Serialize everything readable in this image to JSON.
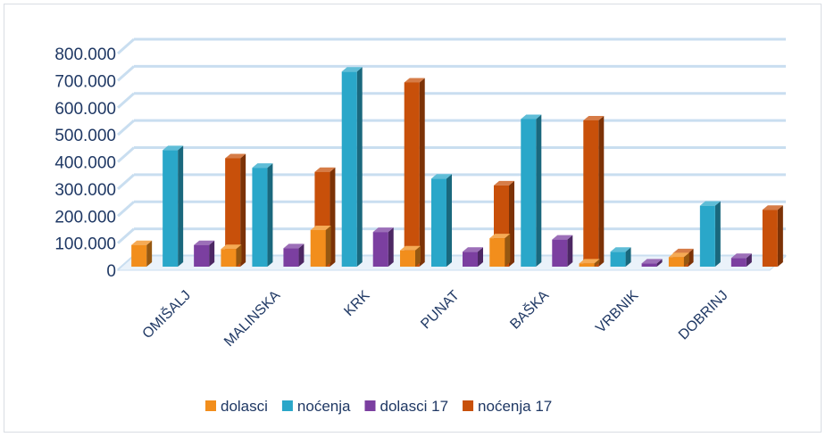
{
  "chart_data": {
    "type": "bar",
    "title": "",
    "xlabel": "",
    "ylabel": "",
    "ylim": [
      0,
      800000
    ],
    "y_ticks": [
      "0",
      "100.000",
      "200.000",
      "300.000",
      "400.000",
      "500.000",
      "600.000",
      "700.000",
      "800.000"
    ],
    "categories": [
      "OMIŠALJ",
      "MALINSKA",
      "KRK",
      "PUNAT",
      "BAŠKA",
      "VRBNIK",
      "DOBRINJ"
    ],
    "series": [
      {
        "name": "dolasci",
        "color": "#f28e1c",
        "values": [
          80000,
          65000,
          135000,
          60000,
          105000,
          12000,
          35000
        ]
      },
      {
        "name": "noćenja",
        "color": "#2aa7c9",
        "values": [
          430000,
          365000,
          720000,
          325000,
          545000,
          55000,
          225000
        ]
      },
      {
        "name": "dolasci 17",
        "color": "#7b3fa0",
        "values": [
          80000,
          68000,
          128000,
          55000,
          100000,
          12000,
          32000
        ]
      },
      {
        "name": "noćenja 17",
        "color": "#c8500a",
        "values": [
          400000,
          350000,
          680000,
          300000,
          540000,
          50000,
          210000
        ]
      }
    ],
    "grid": true,
    "legend": "bottom"
  }
}
